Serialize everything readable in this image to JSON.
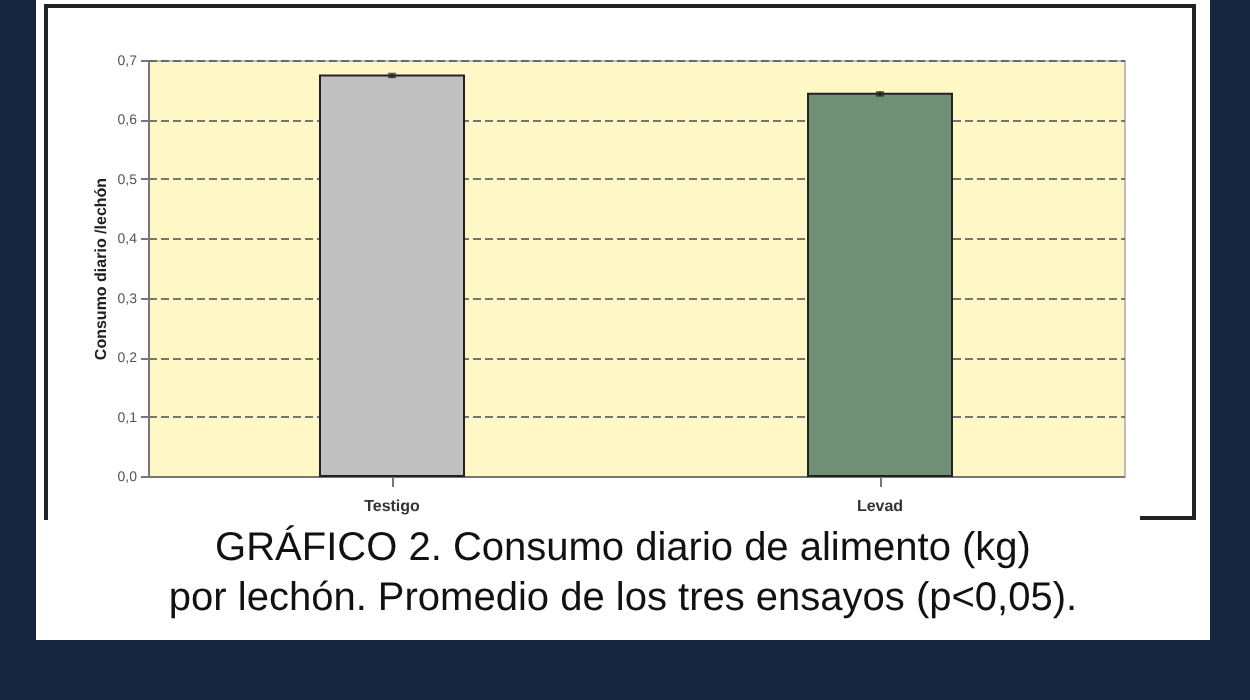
{
  "chart_data": {
    "type": "bar",
    "ylabel": "Consumo diario /lechón",
    "categories": [
      "Testigo",
      "Levad"
    ],
    "values": [
      0.674,
      0.643
    ],
    "errors": [
      0.003,
      0.003
    ],
    "colors": [
      "#c0c0c0",
      "#6f8f76"
    ],
    "ylim": [
      0,
      0.7
    ],
    "yticks": [
      {
        "value": 0,
        "label": "0,0"
      },
      {
        "value": 0.1,
        "label": "0,1"
      },
      {
        "value": 0.2,
        "label": "0,2"
      },
      {
        "value": 0.3,
        "label": "0,3"
      },
      {
        "value": 0.4,
        "label": "0,4"
      },
      {
        "value": 0.5,
        "label": "0,5"
      },
      {
        "value": 0.6,
        "label": "0,6"
      },
      {
        "value": 0.7,
        "label": "0,7"
      }
    ],
    "grid": "y",
    "annotations": [
      "GRÁFICO 2. Consumo diario de alimento (kg)",
      "por lechón. Promedio de los tres ensayos (p<0,05)."
    ]
  }
}
